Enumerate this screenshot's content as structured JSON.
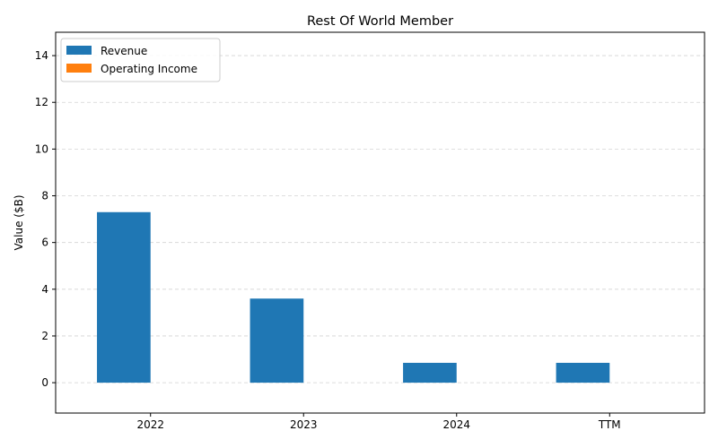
{
  "chart_data": {
    "type": "bar",
    "title": "Rest Of World Member",
    "xlabel": "",
    "ylabel": "Value ($B)",
    "categories": [
      "2022",
      "2023",
      "2024",
      "TTM"
    ],
    "series": [
      {
        "name": "Revenue",
        "color": "#1f77b4",
        "values": [
          7.3,
          3.6,
          0.85,
          0.85
        ]
      },
      {
        "name": "Operating Income",
        "color": "#ff7f0e",
        "values": [
          0,
          0,
          0,
          0
        ]
      }
    ],
    "ylim": [
      -1.3,
      15
    ],
    "yticks": [
      0,
      2,
      4,
      6,
      8,
      10,
      12,
      14
    ],
    "grid": true,
    "legend_position": "top-left"
  }
}
